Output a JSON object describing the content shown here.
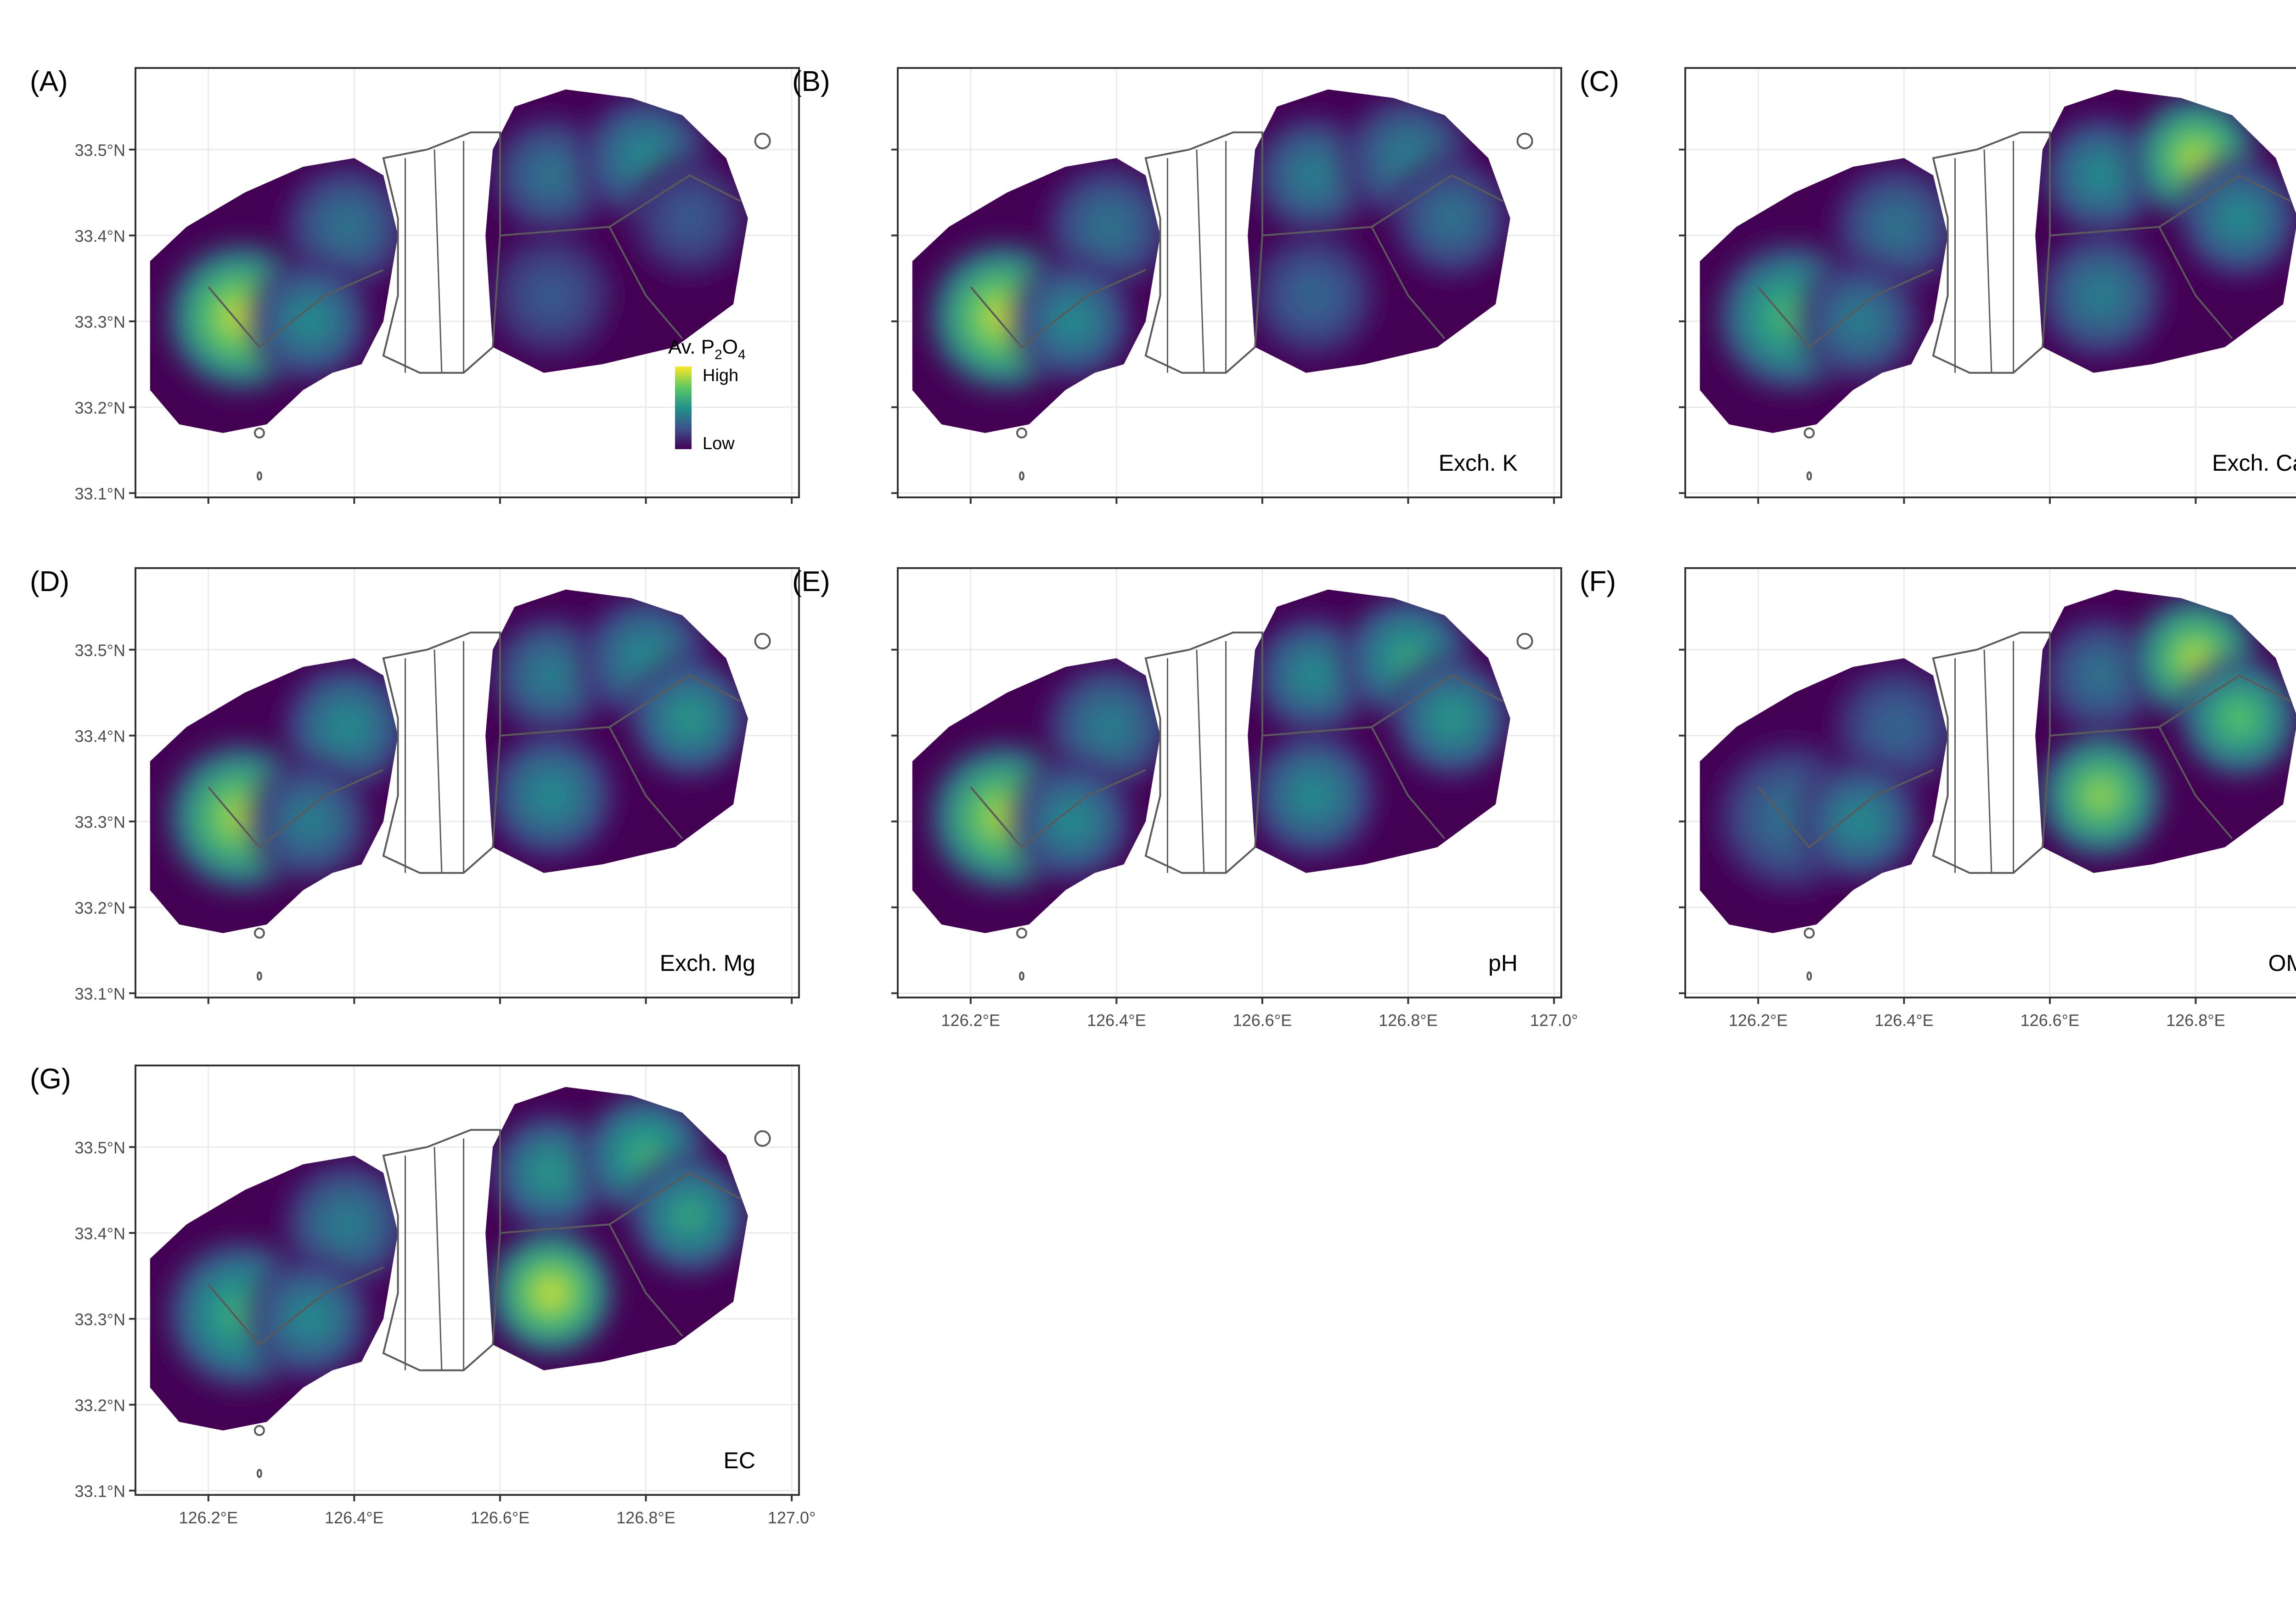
{
  "figure": {
    "colors": {
      "panel_border": "#333333",
      "grid": "#ebebeb",
      "tick_label": "#4d4d4d",
      "outline": "#5a5a5a",
      "background": "#ffffff"
    },
    "colorscale": [
      "#440154",
      "#3b528b",
      "#21918c",
      "#5ec962",
      "#fde725"
    ],
    "legend": {
      "title_main": "Av. P",
      "title_sub1": "2",
      "title_o": "O",
      "title_sub2": "4",
      "high": "High",
      "low": "Low"
    },
    "y_ticks": [
      "33.5°N",
      "33.4°N",
      "33.3°N",
      "33.2°N",
      "33.1°N"
    ],
    "x_ticks": [
      "126.2°E",
      "126.4°E",
      "126.6°E",
      "126.8°E",
      "127.0°"
    ],
    "panels": [
      {
        "letter": "(A)",
        "label": "",
        "show_y": true,
        "show_x": false,
        "has_legend": true,
        "peaks": [
          [
            0.95,
            0.0
          ],
          [
            0.4,
            0.0
          ],
          [
            0.5,
            0.0
          ],
          [
            0.4,
            0.0
          ],
          [
            0.5,
            0.0
          ],
          [
            0.3,
            0.0
          ],
          [
            0.3,
            0.0
          ]
        ]
      },
      {
        "letter": "(B)",
        "label": "Exch. K",
        "show_y": false,
        "show_x": false,
        "has_legend": false,
        "peaks": [
          [
            0.95,
            0.0
          ],
          [
            0.4,
            0.0
          ],
          [
            0.5,
            0.0
          ],
          [
            0.45,
            0.0
          ],
          [
            0.45,
            0.0
          ],
          [
            0.35,
            0.0
          ],
          [
            0.4,
            0.0
          ]
        ]
      },
      {
        "letter": "(C)",
        "label": "Exch. Ca",
        "show_y": false,
        "show_x": false,
        "has_legend": false,
        "peaks": [
          [
            0.7,
            0.0
          ],
          [
            0.4,
            0.0
          ],
          [
            0.45,
            0.0
          ],
          [
            0.5,
            0.0
          ],
          [
            0.9,
            0.0
          ],
          [
            0.45,
            0.0
          ],
          [
            0.5,
            0.0
          ]
        ]
      },
      {
        "letter": "(D)",
        "label": "Exch. Mg",
        "show_y": true,
        "show_x": false,
        "has_legend": false,
        "peaks": [
          [
            0.9,
            0.0
          ],
          [
            0.5,
            0.0
          ],
          [
            0.45,
            0.0
          ],
          [
            0.45,
            0.0
          ],
          [
            0.5,
            0.0
          ],
          [
            0.5,
            0.0
          ],
          [
            0.55,
            0.0
          ]
        ]
      },
      {
        "letter": "(E)",
        "label": "pH",
        "show_y": false,
        "show_x": true,
        "has_legend": false,
        "peaks": [
          [
            0.9,
            0.0
          ],
          [
            0.45,
            0.0
          ],
          [
            0.5,
            0.0
          ],
          [
            0.5,
            0.0
          ],
          [
            0.6,
            0.0
          ],
          [
            0.5,
            0.0
          ],
          [
            0.55,
            0.0
          ]
        ]
      },
      {
        "letter": "(F)",
        "label": "OM",
        "show_y": false,
        "show_x": true,
        "has_legend": false,
        "peaks": [
          [
            0.4,
            0.0
          ],
          [
            0.35,
            0.0
          ],
          [
            0.5,
            0.0
          ],
          [
            0.4,
            0.0
          ],
          [
            0.9,
            0.0
          ],
          [
            0.85,
            0.0
          ],
          [
            0.75,
            0.0
          ]
        ]
      },
      {
        "letter": "(G)",
        "label": "EC",
        "show_y": true,
        "show_x": true,
        "has_legend": false,
        "peaks": [
          [
            0.65,
            0.0
          ],
          [
            0.45,
            0.0
          ],
          [
            0.5,
            0.0
          ],
          [
            0.55,
            0.0
          ],
          [
            0.65,
            0.0
          ],
          [
            0.95,
            0.0
          ],
          [
            0.6,
            0.0
          ]
        ]
      }
    ]
  }
}
